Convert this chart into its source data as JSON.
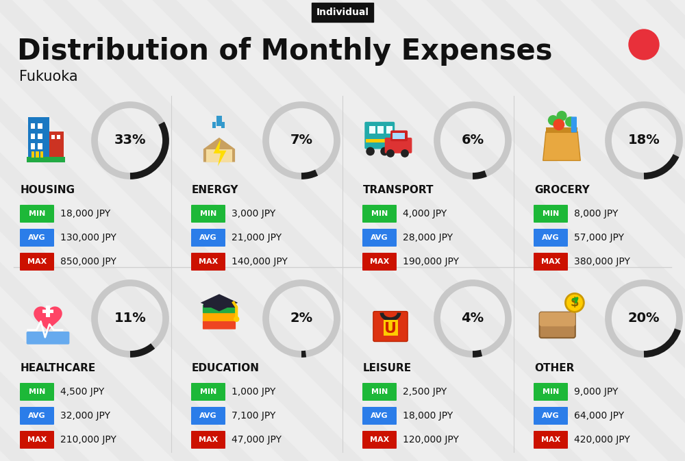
{
  "title": "Distribution of Monthly Expenses",
  "subtitle": "Individual",
  "city": "Fukuoka",
  "bg_color": "#eeeeee",
  "red_dot_color": "#e8303a",
  "categories": [
    {
      "name": "HOUSING",
      "pct": 33,
      "min_val": "18,000 JPY",
      "avg_val": "130,000 JPY",
      "max_val": "850,000 JPY",
      "col": 0,
      "row": 0
    },
    {
      "name": "ENERGY",
      "pct": 7,
      "min_val": "3,000 JPY",
      "avg_val": "21,000 JPY",
      "max_val": "140,000 JPY",
      "col": 1,
      "row": 0
    },
    {
      "name": "TRANSPORT",
      "pct": 6,
      "min_val": "4,000 JPY",
      "avg_val": "28,000 JPY",
      "max_val": "190,000 JPY",
      "col": 2,
      "row": 0
    },
    {
      "name": "GROCERY",
      "pct": 18,
      "min_val": "8,000 JPY",
      "avg_val": "57,000 JPY",
      "max_val": "380,000 JPY",
      "col": 3,
      "row": 0
    },
    {
      "name": "HEALTHCARE",
      "pct": 11,
      "min_val": "4,500 JPY",
      "avg_val": "32,000 JPY",
      "max_val": "210,000 JPY",
      "col": 0,
      "row": 1
    },
    {
      "name": "EDUCATION",
      "pct": 2,
      "min_val": "1,000 JPY",
      "avg_val": "7,100 JPY",
      "max_val": "47,000 JPY",
      "col": 1,
      "row": 1
    },
    {
      "name": "LEISURE",
      "pct": 4,
      "min_val": "2,500 JPY",
      "avg_val": "18,000 JPY",
      "max_val": "120,000 JPY",
      "col": 2,
      "row": 1
    },
    {
      "name": "OTHER",
      "pct": 20,
      "min_val": "9,000 JPY",
      "avg_val": "64,000 JPY",
      "max_val": "420,000 JPY",
      "col": 3,
      "row": 1
    }
  ],
  "min_color": "#1db838",
  "avg_color": "#2b7de9",
  "max_color": "#cc1100",
  "label_texts": [
    "MIN",
    "AVG",
    "MAX"
  ],
  "arc_color": "#1a1a1a",
  "arc_bg_color": "#c8c8c8",
  "stripe_color": "#e8e8e8",
  "divider_color": "#d0d0d0"
}
